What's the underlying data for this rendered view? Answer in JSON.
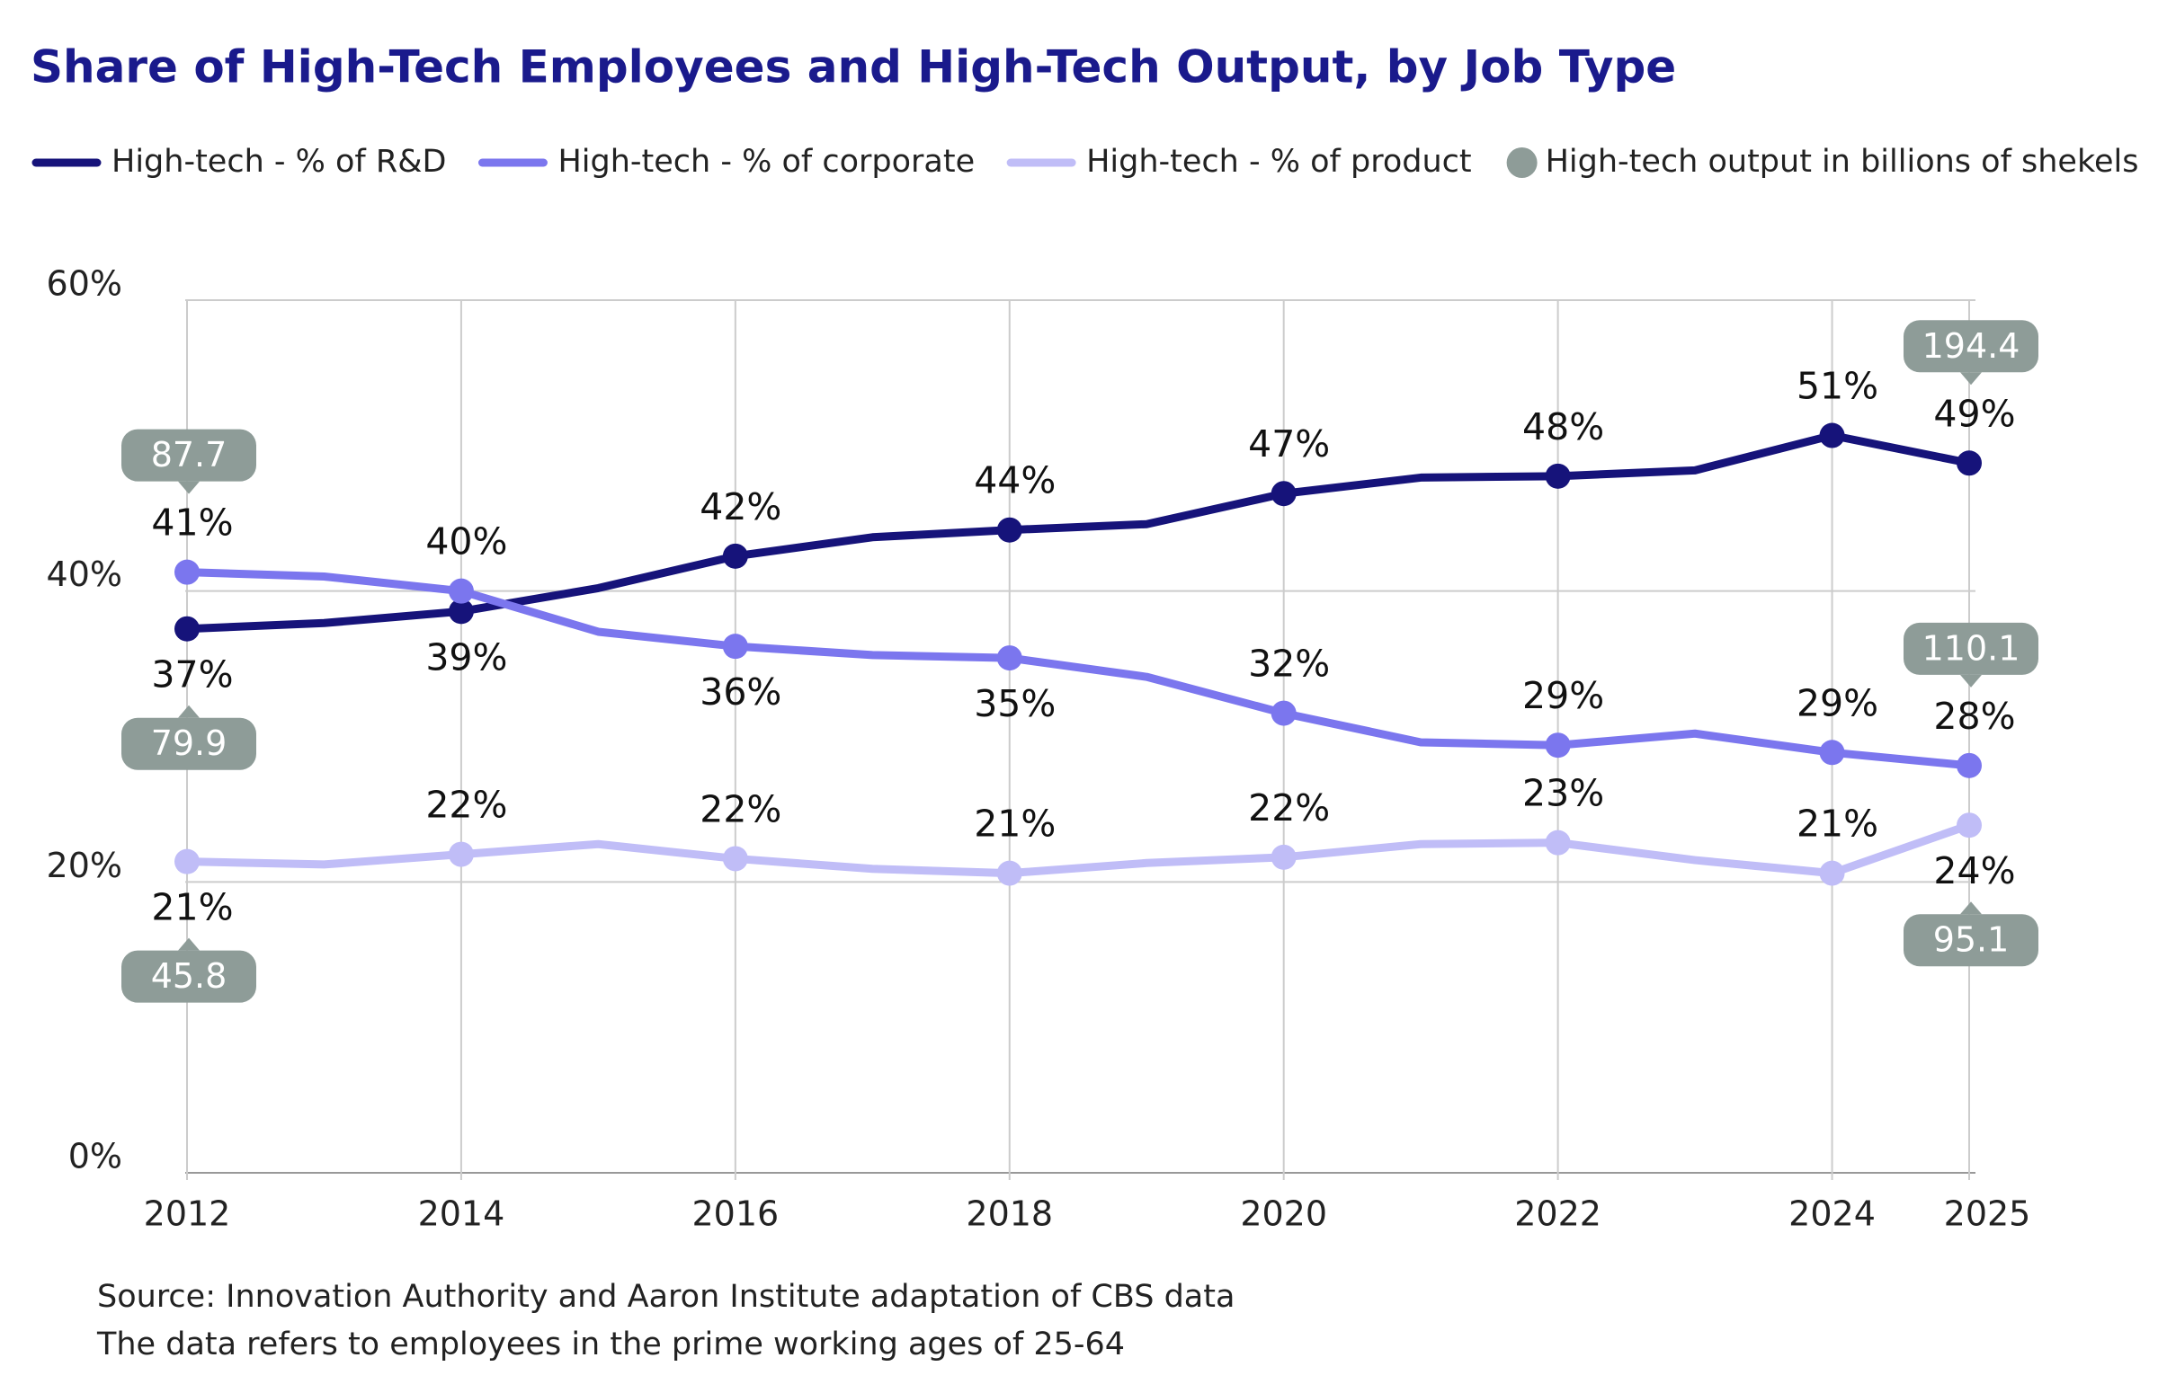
{
  "chart_data": {
    "type": "line",
    "title": "Share of High-Tech Employees and High-Tech Output, by Job Type",
    "x": [
      2012,
      2013,
      2014,
      2015,
      2016,
      2017,
      2018,
      2019,
      2020,
      2021,
      2022,
      2023,
      2024,
      2025
    ],
    "xlim": [
      2012,
      2025
    ],
    "xticks": [
      2012,
      2014,
      2016,
      2018,
      2020,
      2022,
      2024,
      2025
    ],
    "ylim": [
      0,
      60
    ],
    "yticks": [
      {
        "value": 0,
        "label": "0%"
      },
      {
        "value": 20,
        "label": "20%"
      },
      {
        "value": 40,
        "label": "40%"
      },
      {
        "value": 60,
        "label": "60%"
      }
    ],
    "grid": true,
    "series": [
      {
        "name": "High-tech - % of R&D",
        "color": "#16137a",
        "values": [
          37.4,
          37.8,
          38.6,
          40.2,
          42.4,
          43.7,
          44.2,
          44.6,
          46.7,
          47.8,
          47.9,
          48.3,
          50.7,
          48.8
        ],
        "value_labels": [
          "37%",
          null,
          "39%",
          null,
          "42%",
          null,
          "44%",
          null,
          "47%",
          null,
          "48%",
          null,
          "51%",
          "49%"
        ]
      },
      {
        "name": "High-tech - % of corporate",
        "color": "#7b76ee",
        "values": [
          41.3,
          41.0,
          40.0,
          37.2,
          36.2,
          35.6,
          35.4,
          34.1,
          31.6,
          29.6,
          29.4,
          30.2,
          28.9,
          28.0
        ],
        "value_labels": [
          "41%",
          null,
          "40%",
          null,
          "36%",
          null,
          "35%",
          null,
          "32%",
          null,
          "29%",
          null,
          "29%",
          "28%"
        ]
      },
      {
        "name": "High-tech - % of product",
        "color": "#c0bdf7",
        "values": [
          21.4,
          21.2,
          21.9,
          22.6,
          21.6,
          20.9,
          20.6,
          21.3,
          21.7,
          22.6,
          22.7,
          21.5,
          20.6,
          23.9
        ],
        "value_labels": [
          "21%",
          null,
          "22%",
          null,
          "22%",
          null,
          "21%",
          null,
          "22%",
          null,
          "23%",
          null,
          "21%",
          "24%"
        ]
      }
    ],
    "callouts": {
      "name": "High-tech output in billions of shekels",
      "color": "#8e9c98",
      "x": [
        2012,
        2025
      ],
      "values": [
        [
          79.9,
          194.4
        ],
        [
          87.7,
          110.1
        ],
        [
          45.8,
          95.1
        ]
      ]
    },
    "notes": [
      "Source: Innovation Authority and Aaron Institute adaptation of CBS data",
      "The data refers to employees in the prime working ages of 25-64"
    ]
  }
}
